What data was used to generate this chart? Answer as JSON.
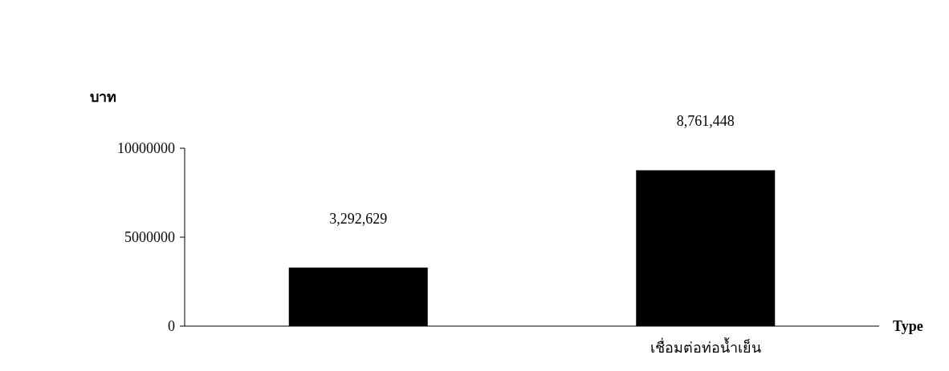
{
  "chart_data": {
    "type": "bar",
    "ylabel": "บาท",
    "xlabel": "Type",
    "categories": [
      null,
      "เชื่อมต่อท่อน้ำเย็น"
    ],
    "values": [
      3292629,
      8761448
    ],
    "value_labels": [
      "3,292,629",
      "8,761,448"
    ],
    "color": "#000000",
    "ylim": [
      0,
      10000000
    ],
    "yticks": [
      0,
      5000000,
      10000000
    ]
  }
}
